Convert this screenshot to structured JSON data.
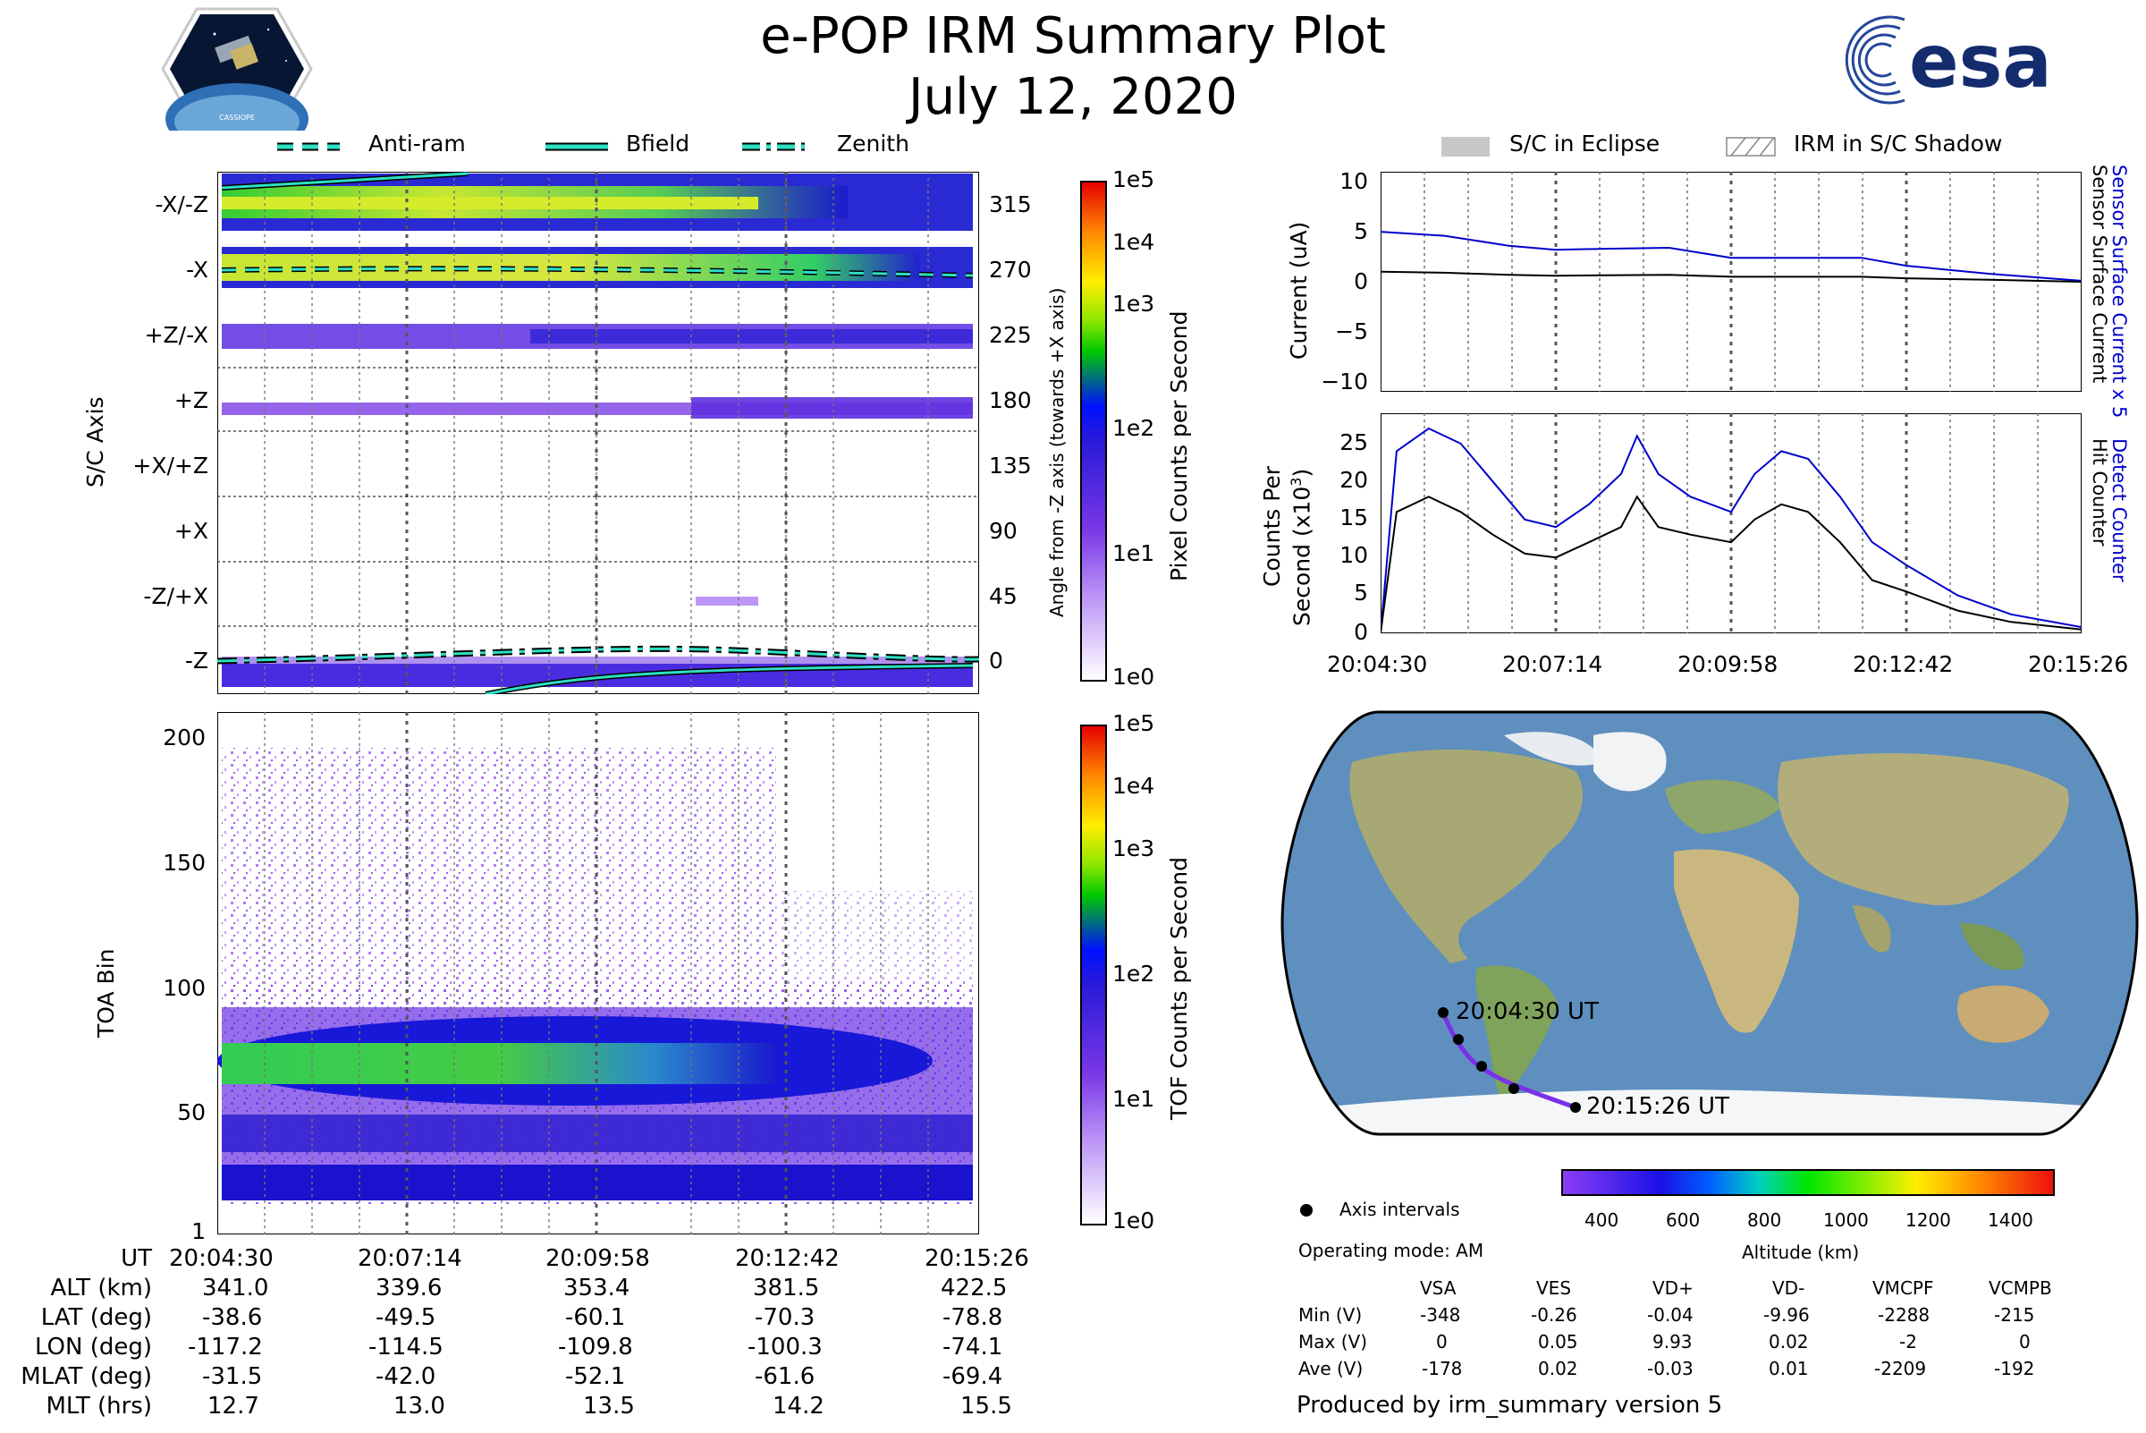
{
  "title": "e-POP IRM Summary Plot",
  "date": "July 12, 2020",
  "logos": {
    "cassiope": "CASSIOPE",
    "esa": "esa"
  },
  "legend_top": [
    "Anti-ram",
    "Bfield",
    "Zenith"
  ],
  "legend_right": [
    "S/C in Eclipse",
    "IRM in S/C Shadow"
  ],
  "pixel_panel": {
    "ylabel": "S/C Axis",
    "ylabel_right": "Angle from -Z axis (towards +X axis)",
    "left_ticks": [
      "-X/-Z",
      "-X",
      "+Z/-X",
      "+Z",
      "+X/+Z",
      "+X",
      "-Z/+X",
      "-Z"
    ],
    "right_ticks": [
      "315",
      "270",
      "225",
      "180",
      "135",
      "90",
      "45",
      "0"
    ],
    "colorbar_label": "Pixel Counts per Second",
    "colorbar_ticks": [
      "1e5",
      "1e4",
      "1e3",
      "1e2",
      "1e1",
      "1e0"
    ]
  },
  "toa_panel": {
    "ylabel": "TOA Bin",
    "yticks": [
      "200",
      "150",
      "100",
      "50",
      "1"
    ],
    "colorbar_label": "TOF Counts per Second",
    "colorbar_ticks": [
      "1e5",
      "1e4",
      "1e3",
      "1e2",
      "1e1",
      "1e0"
    ]
  },
  "table": {
    "rows": [
      {
        "label": "UT",
        "values": [
          "20:04:30",
          "20:07:14",
          "20:09:58",
          "20:12:42",
          "20:15:26"
        ]
      },
      {
        "label": "ALT (km)",
        "values": [
          "341.0",
          "339.6",
          "353.4",
          "381.5",
          "422.5"
        ]
      },
      {
        "label": "LAT (deg)",
        "values": [
          "-38.6",
          "-49.5",
          "-60.1",
          "-70.3",
          "-78.8"
        ]
      },
      {
        "label": "LON (deg)",
        "values": [
          "-117.2",
          "-114.5",
          "-109.8",
          "-100.3",
          "-74.1"
        ]
      },
      {
        "label": "MLAT (deg)",
        "values": [
          "-31.5",
          "-42.0",
          "-52.1",
          "-61.6",
          "-69.4"
        ]
      },
      {
        "label": "MLT (hrs)",
        "values": [
          "12.7",
          "13.0",
          "13.5",
          "14.2",
          "15.5"
        ]
      }
    ]
  },
  "current_panel": {
    "ylabel": "Current (uA)",
    "yticks": [
      "10",
      "5",
      "0",
      "−5",
      "−10"
    ],
    "right_label_blue": "Sensor Surface Current x 5",
    "right_label_black": "Sensor Surface Current",
    "blue": "#0000cc"
  },
  "counts_panel": {
    "ylabel_line1": "Counts Per",
    "ylabel_line2": "Second (x10",
    "ylabel_sup": "3",
    "ylabel_close": ")",
    "yticks": [
      "25",
      "20",
      "15",
      "10",
      "5",
      "0"
    ],
    "right_label_blue": "Detect Counter",
    "right_label_black": "Hit Counter",
    "xticks": [
      "20:04:30",
      "20:07:14",
      "20:09:58",
      "20:12:42",
      "20:15:26"
    ]
  },
  "map": {
    "start_label": "20:04:30 UT",
    "end_label": "20:15:26 UT",
    "legend_label": "Axis intervals",
    "mode": "Operating mode: AM"
  },
  "altitude_colorbar": {
    "label": "Altitude (km)",
    "ticks": [
      "400",
      "600",
      "800",
      "1000",
      "1200",
      "1400"
    ]
  },
  "voltage_table": {
    "columns": [
      "VSA",
      "VES",
      "VD+",
      "VD-",
      "VMCPF",
      "VCMPB"
    ],
    "rows": [
      {
        "label": "Min (V)",
        "values": [
          "-348",
          "-0.26",
          "-0.04",
          "-9.96",
          "-2288",
          "-215"
        ]
      },
      {
        "label": "Max (V)",
        "values": [
          "0",
          "0.05",
          "9.93",
          "0.02",
          "-2",
          "0"
        ]
      },
      {
        "label": "Ave (V)",
        "values": [
          "-178",
          "0.02",
          "-0.03",
          "0.01",
          "-2209",
          "-192"
        ]
      }
    ]
  },
  "footer": "Produced by irm_summary version 5",
  "chart_data": [
    {
      "type": "line",
      "title": "",
      "xlabel": "",
      "ylabel": "Current (uA)",
      "ylim": [
        -11,
        11
      ],
      "x": [
        "20:04:30",
        "20:05:30",
        "20:06:30",
        "20:07:14",
        "20:08:00",
        "20:09:00",
        "20:09:58",
        "20:11:00",
        "20:12:00",
        "20:12:42",
        "20:14:00",
        "20:15:26"
      ],
      "series": [
        {
          "name": "Sensor Surface Current x 5",
          "values": [
            5.0,
            4.6,
            3.6,
            3.2,
            3.3,
            3.4,
            2.4,
            2.4,
            2.4,
            1.6,
            0.8,
            0.1
          ]
        },
        {
          "name": "Sensor Surface Current",
          "values": [
            1.0,
            0.9,
            0.7,
            0.6,
            0.65,
            0.7,
            0.5,
            0.5,
            0.5,
            0.35,
            0.2,
            0.0
          ]
        }
      ]
    },
    {
      "type": "line",
      "title": "",
      "xlabel": "",
      "ylabel": "Counts Per Second (x10^3)",
      "ylim": [
        0,
        29
      ],
      "x": [
        "20:04:30",
        "20:04:45",
        "20:05:15",
        "20:05:45",
        "20:06:15",
        "20:06:45",
        "20:07:14",
        "20:07:45",
        "20:08:15",
        "20:08:30",
        "20:08:50",
        "20:09:20",
        "20:09:58",
        "20:10:20",
        "20:10:45",
        "20:11:10",
        "20:11:40",
        "20:12:10",
        "20:12:42",
        "20:13:30",
        "20:14:20",
        "20:15:26"
      ],
      "series": [
        {
          "name": "Detect Counter",
          "values": [
            0,
            24,
            27,
            25,
            20,
            15,
            14,
            17,
            21,
            26,
            21,
            18,
            16,
            21,
            24,
            23,
            18,
            12,
            9,
            5,
            2.5,
            0.8
          ]
        },
        {
          "name": "Hit Counter",
          "values": [
            0,
            16,
            18,
            16,
            13,
            10.5,
            10,
            12,
            14,
            18,
            14,
            13,
            12,
            15,
            17,
            16,
            12,
            7,
            5.5,
            3,
            1.5,
            0.5
          ]
        }
      ]
    }
  ]
}
